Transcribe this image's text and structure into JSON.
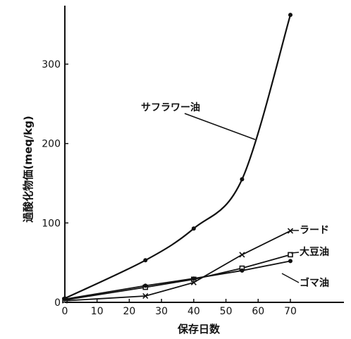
{
  "chart_data": {
    "type": "line",
    "title": "",
    "xlabel": "保存日数",
    "ylabel": "過酸化物価(meq/kg)",
    "xlim": [
      0,
      80
    ],
    "ylim": [
      0,
      370
    ],
    "xticks": [
      0,
      10,
      20,
      30,
      40,
      50,
      60,
      70
    ],
    "yticks": [
      0,
      100,
      200,
      300
    ],
    "grid": false,
    "legend": "none",
    "series": [
      {
        "name": "サフラワー油",
        "marker": "dot",
        "x": [
          0,
          25,
          40,
          55,
          70
        ],
        "y": [
          5,
          53,
          93,
          155,
          362
        ]
      },
      {
        "name": "ラード",
        "marker": "x",
        "x": [
          0,
          25,
          40,
          55,
          70
        ],
        "y": [
          2,
          8,
          25,
          60,
          90
        ]
      },
      {
        "name": "大豆油",
        "marker": "square",
        "x": [
          0,
          25,
          40,
          55,
          70
        ],
        "y": [
          3,
          19,
          29,
          43,
          60
        ]
      },
      {
        "name": "ゴマ油",
        "marker": "dot",
        "x": [
          0,
          25,
          40,
          55,
          70
        ],
        "y": [
          4,
          21,
          30,
          40,
          52
        ]
      }
    ]
  }
}
